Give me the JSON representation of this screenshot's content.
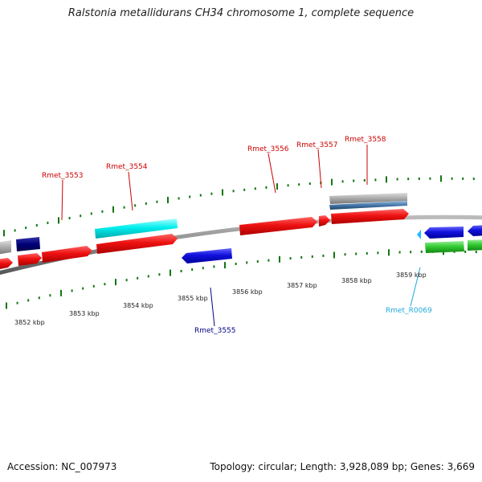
{
  "title": "Ralstonia metallidurans CH34 chromosome 1, complete sequence",
  "footer": {
    "accession": "Accession: NC_007973",
    "stats": "Topology: circular; Length: 3,928,089 bp; Genes: 3,669"
  },
  "colors": {
    "red_gene": "#ee1111",
    "cyan_gene": "#00eeee",
    "blue_gene": "#1111dd",
    "navy_gene": "#000077",
    "green_gene": "#33cc33",
    "backbone": "#888888",
    "tick": "#117711",
    "label_red": "#cc0000",
    "label_navy": "#000088",
    "label_sky": "#22aadd"
  },
  "kbp_labels": [
    "3852 kbp",
    "3853 kbp",
    "3854 kbp",
    "3855 kbp",
    "3856 kbp",
    "3857 kbp",
    "3858 kbp",
    "3859 kbp"
  ],
  "gene_labels": [
    {
      "name": "Rmet_3553",
      "color": "label_red"
    },
    {
      "name": "Rmet_3554",
      "color": "label_red"
    },
    {
      "name": "Rmet_3556",
      "color": "label_red"
    },
    {
      "name": "Rmet_3557",
      "color": "label_red"
    },
    {
      "name": "Rmet_3558",
      "color": "label_red"
    },
    {
      "name": "Rmet_3555",
      "color": "label_navy"
    },
    {
      "name": "Rmet_R0069",
      "color": "label_sky"
    }
  ]
}
